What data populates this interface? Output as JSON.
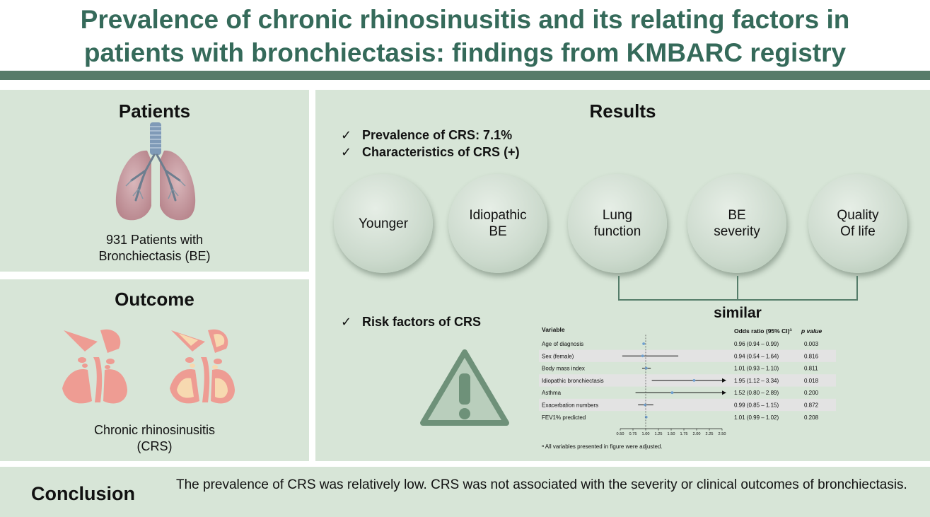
{
  "title": {
    "line1": "Prevalence of chronic rhinosinusitis and its relating factors in",
    "line2": "patients with bronchiectasis: findings from KMBARC registry"
  },
  "patients": {
    "heading": "Patients",
    "icon": "lungs-icon",
    "caption_line1": "931 Patients with",
    "caption_line2": "Bronchiectasis (BE)"
  },
  "outcome": {
    "heading": "Outcome",
    "icon": "sinus-icon",
    "caption_line1": "Chronic rhinosinusitis",
    "caption_line2": "(CRS)"
  },
  "results": {
    "heading": "Results",
    "checks": [
      {
        "mark": "✓",
        "text": "Prevalence of CRS: 7.1%"
      },
      {
        "mark": "✓",
        "text": "Characteristics of CRS (+)"
      }
    ],
    "characteristics": [
      "Younger",
      "Idiopathic\nBE",
      "Lung\nfunction",
      "BE\nseverity",
      "Quality\nOf life"
    ],
    "similar_label": "similar",
    "risk_check": {
      "mark": "✓",
      "text": "Risk factors of CRS"
    },
    "warning_icon": "warning-icon"
  },
  "chart_data": {
    "type": "forest",
    "header_variable": "Variable",
    "header_or": "Odds ratio (95% CI)",
    "header_or_sup": "a",
    "header_p": "p value",
    "xlim": [
      0.5,
      2.5
    ],
    "reference_line": 1.0,
    "ticks": [
      "0.50",
      "0.75",
      "1.00",
      "1.25",
      "1.50",
      "1.75",
      "2.00",
      "2.25",
      "2.50"
    ],
    "rows": [
      {
        "label": "Age of diagnosis",
        "or": 0.96,
        "lo": 0.94,
        "hi": 0.99,
        "or_text": "0.96 (0.94 – 0.99)",
        "p": "0.003",
        "shaded": false
      },
      {
        "label": "Sex (female)",
        "or": 0.94,
        "lo": 0.54,
        "hi": 1.64,
        "or_text": "0.94 (0.54 – 1.64)",
        "p": "0.816",
        "shaded": true
      },
      {
        "label": "Body mass index",
        "or": 1.01,
        "lo": 0.93,
        "hi": 1.1,
        "or_text": "1.01 (0.93 – 1.10)",
        "p": "0.811",
        "shaded": false
      },
      {
        "label": "Idiopathic bronchiectasis",
        "or": 1.95,
        "lo": 1.12,
        "hi": 3.34,
        "or_text": "1.95 (1.12 – 3.34)",
        "p": "0.018",
        "shaded": true
      },
      {
        "label": "Asthma",
        "or": 1.52,
        "lo": 0.8,
        "hi": 2.89,
        "or_text": "1.52 (0.80 – 2.89)",
        "p": "0.200",
        "shaded": false
      },
      {
        "label": "Exacerbation numbers",
        "or": 0.99,
        "lo": 0.85,
        "hi": 1.15,
        "or_text": "0.99 (0.85 – 1.15)",
        "p": "0.872",
        "shaded": true
      },
      {
        "label": "FEV1% predicted",
        "or": 1.01,
        "lo": 0.99,
        "hi": 1.02,
        "or_text": "1.01 (0.99 – 1.02)",
        "p": "0.208",
        "shaded": false
      }
    ],
    "footnote": "ᵃ All variables presented in figure were adjusted.",
    "colors": {
      "point": "#6FA0D0",
      "shade": "#E3E3E3"
    }
  },
  "conclusion": {
    "heading": "Conclusion",
    "text": "The prevalence of CRS was relatively low. CRS was not associated with the severity or clinical outcomes of bronchiectasis."
  }
}
